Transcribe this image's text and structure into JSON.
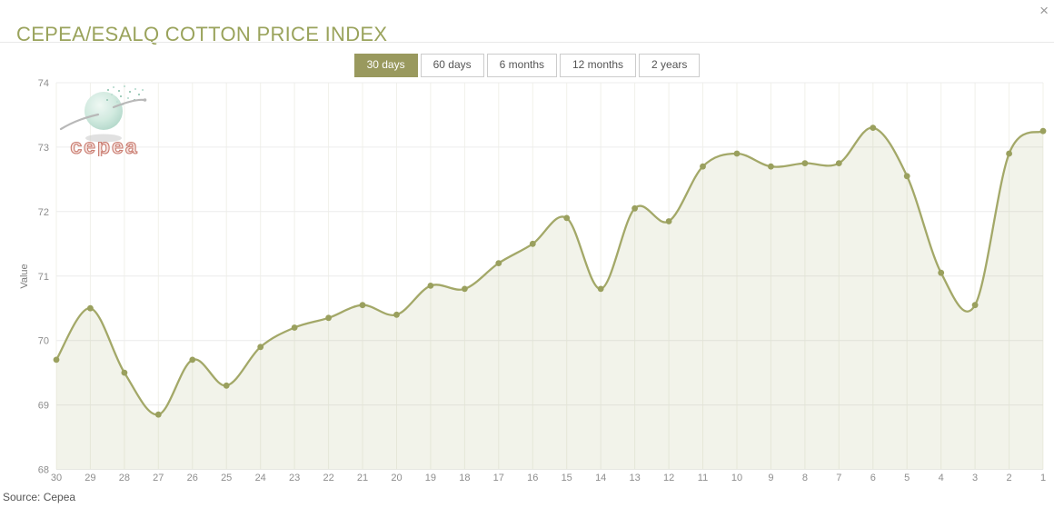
{
  "window": {
    "close_icon": "×"
  },
  "header": {
    "title": "CEPEA/ESALQ COTTON PRICE INDEX"
  },
  "tabs": [
    {
      "label": "30 days",
      "active": true
    },
    {
      "label": "60 days",
      "active": false
    },
    {
      "label": "6 months",
      "active": false
    },
    {
      "label": "12 months",
      "active": false
    },
    {
      "label": "2 years",
      "active": false
    }
  ],
  "logo": {
    "brand": "cepea"
  },
  "footer": {
    "source": "Source: Cepea"
  },
  "colors": {
    "accent_olive": "#9aa35c",
    "active_tab_bg": "#99995e",
    "line": "#a3a868",
    "marker": "#9aa05e",
    "fill": "rgba(163,168,104,0.14)",
    "grid_horizontal": "#ececec",
    "grid_vertical": "#f1f1ea",
    "tick_label": "#8d8d8d"
  },
  "chart_data": {
    "type": "area",
    "title": "CEPEA/ESALQ COTTON PRICE INDEX",
    "xlabel": "",
    "ylabel": "Value",
    "x": [
      "30",
      "29",
      "28",
      "27",
      "26",
      "25",
      "24",
      "23",
      "22",
      "21",
      "20",
      "19",
      "18",
      "17",
      "16",
      "15",
      "14",
      "13",
      "12",
      "11",
      "10",
      "9",
      "8",
      "7",
      "6",
      "5",
      "4",
      "3",
      "2",
      "1"
    ],
    "values": [
      69.7,
      70.5,
      69.5,
      68.85,
      69.7,
      69.3,
      69.9,
      70.2,
      70.35,
      70.55,
      70.4,
      70.85,
      70.8,
      71.2,
      71.5,
      71.9,
      70.8,
      72.05,
      71.85,
      72.7,
      72.9,
      72.7,
      72.75,
      72.75,
      73.3,
      72.55,
      71.05,
      70.55,
      72.9,
      73.25
    ],
    "ylim": [
      68,
      74
    ],
    "yticks": [
      68,
      69,
      70,
      71,
      72,
      73,
      74
    ],
    "grid": true,
    "legend": "none",
    "smooth": true,
    "x_order": "days ago, descending left to right"
  }
}
